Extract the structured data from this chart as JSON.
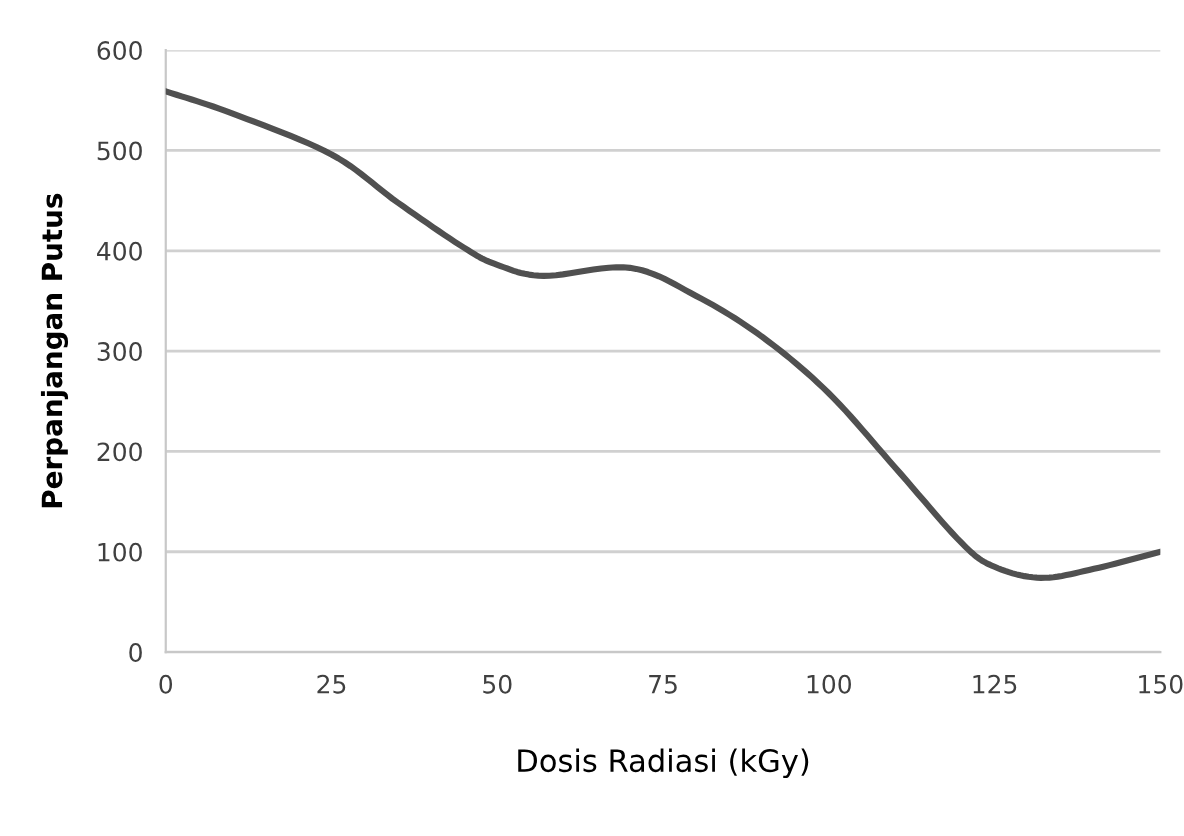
{
  "chart_data": {
    "type": "line",
    "xlabel": "Dosis Radiasi (kGy)",
    "ylabel": "Perpanjangan Putus",
    "x": [
      0,
      10,
      25,
      35,
      45,
      50,
      57,
      70,
      80,
      90,
      100,
      110,
      120,
      125,
      132,
      140,
      150
    ],
    "series": [
      {
        "color": "#505050",
        "values": [
          559,
          537,
          496,
          448,
          403,
          386,
          375,
          383,
          355,
          314,
          258,
          184,
          109,
          85,
          74,
          83,
          100
        ]
      }
    ],
    "xlim": [
      0,
      150
    ],
    "xticks": [
      0,
      25,
      50,
      75,
      100,
      125,
      150
    ],
    "ylim": [
      0,
      600
    ],
    "yticks": [
      0,
      100,
      200,
      300,
      400,
      500,
      600
    ],
    "grid": "y",
    "marker": "none",
    "line_style": "solid"
  }
}
